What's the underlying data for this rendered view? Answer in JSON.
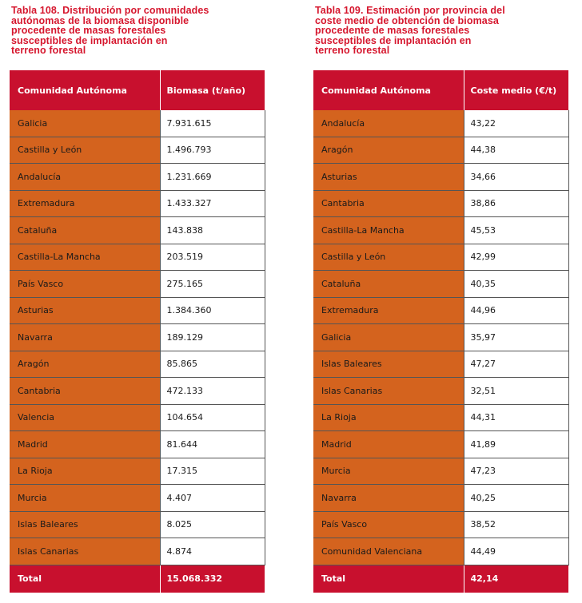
{
  "table108": {
    "title_lines": [
      "Tabla 108. Distribución por comunidades",
      "autónomas de la biomasa disponible",
      "procedente de masas forestales",
      "susceptibles de implantación en",
      "terreno forestal"
    ],
    "headers": [
      "Comunidad Autónoma",
      "Biomasa (t/año)"
    ],
    "rows": [
      [
        "Galicia",
        "7.931.615"
      ],
      [
        "Castilla y León",
        "1.496.793"
      ],
      [
        "Andalucía",
        "1.231.669"
      ],
      [
        "Extremadura",
        "1.433.327"
      ],
      [
        "Cataluña",
        "143.838"
      ],
      [
        "Castilla-La Mancha",
        "203.519"
      ],
      [
        "País Vasco",
        "275.165"
      ],
      [
        "Asturias",
        "1.384.360"
      ],
      [
        "Navarra",
        "189.129"
      ],
      [
        "Aragón",
        "85.865"
      ],
      [
        "Cantabria",
        "472.133"
      ],
      [
        "Valencia",
        "104.654"
      ],
      [
        "Madrid",
        "81.644"
      ],
      [
        "La Rioja",
        "17.315"
      ],
      [
        "Murcia",
        "4.407"
      ],
      [
        "Islas Baleares",
        "8.025"
      ],
      [
        "Islas Canarias",
        "4.874"
      ]
    ],
    "total": [
      "Total",
      "15.068.332"
    ]
  },
  "table109": {
    "title_lines": [
      "Tabla 109. Estimación por provincia del",
      "coste medio de obtención de biomasa",
      "procedente de masas forestales",
      "susceptibles de implantación en",
      "terreno forestal"
    ],
    "headers": [
      "Comunidad Autónoma",
      "Coste medio (€/t)"
    ],
    "rows": [
      [
        "Andalucía",
        "43,22"
      ],
      [
        "Aragón",
        "44,38"
      ],
      [
        "Asturias",
        "34,66"
      ],
      [
        "Cantabria",
        "38,86"
      ],
      [
        "Castilla-La Mancha",
        "45,53"
      ],
      [
        "Castilla y León",
        "42,99"
      ],
      [
        "Cataluña",
        "40,35"
      ],
      [
        "Extremadura",
        "44,96"
      ],
      [
        "Galicia",
        "35,97"
      ],
      [
        "Islas Baleares",
        "47,27"
      ],
      [
        "Islas Canarias",
        "32,51"
      ],
      [
        "La Rioja",
        "44,31"
      ],
      [
        "Madrid",
        "41,89"
      ],
      [
        "Murcia",
        "47,23"
      ],
      [
        "Navarra",
        "40,25"
      ],
      [
        "País Vasco",
        "38,52"
      ],
      [
        "Comunidad Valenciana",
        "44,49"
      ]
    ],
    "total": [
      "Total",
      "42,14"
    ]
  },
  "colors": {
    "title": "#d6172e",
    "header_bg": "#c8102e",
    "name_cell_bg": "#d4631e",
    "value_cell_bg": "#ffffff"
  }
}
